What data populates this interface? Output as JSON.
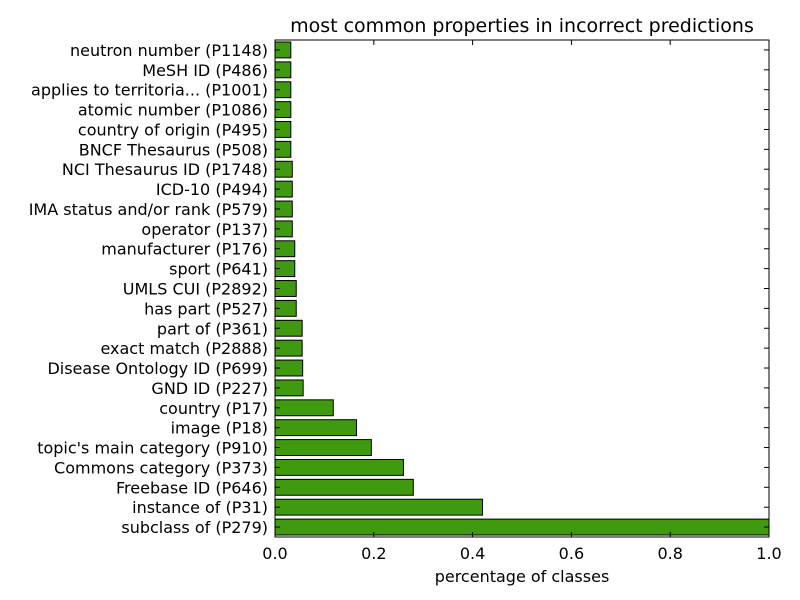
{
  "chart_data": {
    "type": "bar",
    "orientation": "horizontal",
    "title": "most common properties in incorrect predictions",
    "xlabel": "percentage of classes",
    "ylabel": "",
    "xlim": [
      0,
      1.0
    ],
    "xticks": [
      "0.0",
      "0.2",
      "0.4",
      "0.6",
      "0.8",
      "1.0"
    ],
    "bar_color": "#3f9a0f",
    "grid": false,
    "categories": [
      "subclass of (P279)",
      "instance of (P31)",
      "Freebase ID (P646)",
      "Commons category (P373)",
      "topic's main category (P910)",
      "image (P18)",
      "country (P17)",
      "GND ID (P227)",
      "Disease Ontology ID (P699)",
      "exact match (P2888)",
      "part of (P361)",
      "has part (P527)",
      "UMLS CUI (P2892)",
      "sport (P641)",
      "manufacturer (P176)",
      "operator (P137)",
      "IMA status and/or rank (P579)",
      "ICD-10 (P494)",
      "NCI Thesaurus ID (P1748)",
      "BNCF Thesaurus (P508)",
      "country of origin (P495)",
      "atomic number (P1086)",
      "applies to territoria... (P1001)",
      "MeSH ID (P486)",
      "neutron number (P1148)"
    ],
    "values": [
      1.0,
      0.42,
      0.28,
      0.26,
      0.195,
      0.165,
      0.118,
      0.057,
      0.056,
      0.055,
      0.055,
      0.043,
      0.043,
      0.04,
      0.04,
      0.035,
      0.035,
      0.035,
      0.035,
      0.032,
      0.032,
      0.032,
      0.032,
      0.032,
      0.032
    ]
  }
}
